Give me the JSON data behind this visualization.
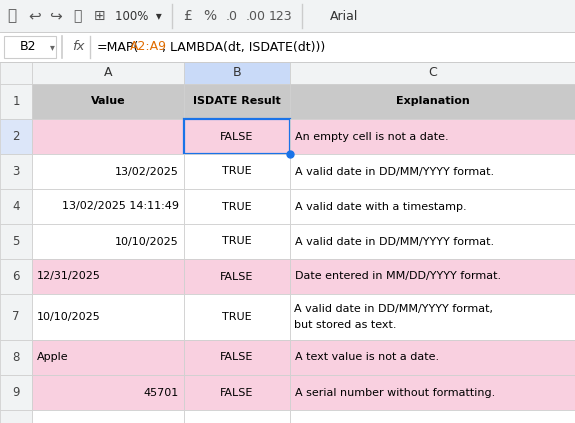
{
  "toolbar_bg": "#f1f3f4",
  "col_header_bg": "#f1f3f4",
  "col_header_selected_bg": "#c9daf8",
  "row_header_bg": "#f1f3f4",
  "row_header_selected_bg": "#dce6f9",
  "grid_line_color": "#d0d0d0",
  "cell_font_size": 8.0,
  "formula_range_color": "#e06c00",
  "rows": [
    {
      "row": 1,
      "A": "Value",
      "B": "ISDATE Result",
      "C": "Explanation",
      "bg": "#c9c9c9",
      "bold": true,
      "A_align": "center",
      "B_align": "center",
      "C_align": "center"
    },
    {
      "row": 2,
      "A": "",
      "B": "FALSE",
      "C": "An empty cell is not a date.",
      "bg": "#f9d0e0",
      "bold": false,
      "A_align": "left",
      "B_align": "center",
      "C_align": "left",
      "selected": true
    },
    {
      "row": 3,
      "A": "13/02/2025",
      "B": "TRUE",
      "C": "A valid date in DD/MM/YYYY format.",
      "bg": "#ffffff",
      "bold": false,
      "A_align": "right",
      "B_align": "center",
      "C_align": "left"
    },
    {
      "row": 4,
      "A": "13/02/2025 14:11:49",
      "B": "TRUE",
      "C": "A valid date with a timestamp.",
      "bg": "#ffffff",
      "bold": false,
      "A_align": "right",
      "B_align": "center",
      "C_align": "left"
    },
    {
      "row": 5,
      "A": "10/10/2025",
      "B": "TRUE",
      "C": "A valid date in DD/MM/YYYY format.",
      "bg": "#ffffff",
      "bold": false,
      "A_align": "right",
      "B_align": "center",
      "C_align": "left"
    },
    {
      "row": 6,
      "A": "12/31/2025",
      "B": "FALSE",
      "C": "Date entered in MM/DD/YYYY format.",
      "bg": "#f9d0e0",
      "bold": false,
      "A_align": "left",
      "B_align": "center",
      "C_align": "left"
    },
    {
      "row": 7,
      "A": "10/10/2025",
      "B": "TRUE",
      "C": "A valid date in DD/MM/YYYY format,\nbut stored as text.",
      "bg": "#ffffff",
      "bold": false,
      "A_align": "left",
      "B_align": "center",
      "C_align": "left"
    },
    {
      "row": 8,
      "A": "Apple",
      "B": "FALSE",
      "C": "A text value is not a date.",
      "bg": "#f9d0e0",
      "bold": false,
      "A_align": "left",
      "B_align": "center",
      "C_align": "left"
    },
    {
      "row": 9,
      "A": "45701",
      "B": "FALSE",
      "C": "A serial number without formatting.",
      "bg": "#f9d0e0",
      "bold": false,
      "A_align": "right",
      "B_align": "center",
      "C_align": "left"
    },
    {
      "row": 10,
      "A": "",
      "B": "",
      "C": "",
      "bg": "#ffffff",
      "bold": false,
      "A_align": "left",
      "B_align": "center",
      "C_align": "left"
    }
  ],
  "figsize": [
    5.75,
    4.23
  ],
  "dpi": 100
}
